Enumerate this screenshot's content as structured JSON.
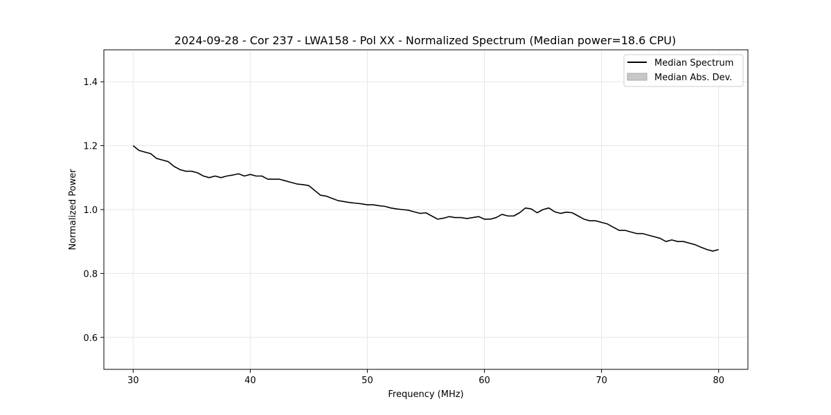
{
  "chart_data": {
    "type": "line",
    "title": "2024-09-28 - Cor 237 - LWA158 - Pol XX - Normalized Spectrum (Median power=18.6 CPU)",
    "xlabel": "Frequency (MHz)",
    "ylabel": "Normalized Power",
    "xlim": [
      27.5,
      82.5
    ],
    "ylim": [
      0.5,
      1.5
    ],
    "xticks": [
      30,
      40,
      50,
      60,
      70,
      80
    ],
    "yticks": [
      0.6,
      0.8,
      1.0,
      1.2,
      1.4
    ],
    "xtick_labels": [
      "30",
      "40",
      "50",
      "60",
      "70",
      "80"
    ],
    "ytick_labels": [
      "0.6",
      "0.8",
      "1.0",
      "1.2",
      "1.4"
    ],
    "grid": true,
    "legend": {
      "placement": "top-right",
      "entries": [
        {
          "label": "Median Spectrum",
          "kind": "line",
          "color": "#000000"
        },
        {
          "label": "Median Abs. Dev.",
          "kind": "patch",
          "color": "#c8c8c8"
        }
      ]
    },
    "series": [
      {
        "name": "Median Spectrum",
        "color": "#000000",
        "x": [
          30,
          30.5,
          31,
          31.5,
          32,
          32.5,
          33,
          33.5,
          34,
          34.5,
          35,
          35.5,
          36,
          36.5,
          37,
          37.5,
          38,
          38.5,
          39,
          39.5,
          40,
          40.5,
          41,
          41.5,
          42,
          42.5,
          43,
          43.5,
          44,
          44.5,
          45,
          45.5,
          46,
          46.5,
          47,
          47.5,
          48,
          48.5,
          49,
          49.5,
          50,
          50.5,
          51,
          51.5,
          52,
          52.5,
          53,
          53.5,
          54,
          54.5,
          55,
          55.5,
          56,
          56.5,
          57,
          57.5,
          58,
          58.5,
          59,
          59.5,
          60,
          60.5,
          61,
          61.5,
          62,
          62.5,
          63,
          63.5,
          64,
          64.5,
          65,
          65.5,
          66,
          66.5,
          67,
          67.5,
          68,
          68.5,
          69,
          69.5,
          70,
          70.5,
          71,
          71.5,
          72,
          72.5,
          73,
          73.5,
          74,
          74.5,
          75,
          75.5,
          76,
          76.5,
          77,
          77.5,
          78,
          78.5,
          79,
          79.5,
          80
        ],
        "y": [
          1.2,
          1.185,
          1.18,
          1.175,
          1.16,
          1.155,
          1.15,
          1.135,
          1.125,
          1.12,
          1.12,
          1.115,
          1.105,
          1.1,
          1.105,
          1.1,
          1.105,
          1.108,
          1.112,
          1.105,
          1.11,
          1.105,
          1.105,
          1.095,
          1.095,
          1.095,
          1.09,
          1.085,
          1.08,
          1.078,
          1.075,
          1.06,
          1.045,
          1.042,
          1.035,
          1.028,
          1.025,
          1.022,
          1.02,
          1.018,
          1.015,
          1.015,
          1.012,
          1.01,
          1.005,
          1.002,
          1.0,
          0.998,
          0.993,
          0.988,
          0.99,
          0.98,
          0.97,
          0.973,
          0.978,
          0.975,
          0.975,
          0.972,
          0.975,
          0.978,
          0.97,
          0.97,
          0.975,
          0.985,
          0.98,
          0.98,
          0.99,
          1.005,
          1.002,
          0.99,
          1.0,
          1.005,
          0.993,
          0.988,
          0.992,
          0.99,
          0.98,
          0.97,
          0.965,
          0.965,
          0.96,
          0.955,
          0.945,
          0.935,
          0.935,
          0.93,
          0.925,
          0.925,
          0.92,
          0.915,
          0.91,
          0.9,
          0.905,
          0.9,
          0.9,
          0.895,
          0.89,
          0.882,
          0.875,
          0.87,
          0.875
        ]
      }
    ]
  }
}
